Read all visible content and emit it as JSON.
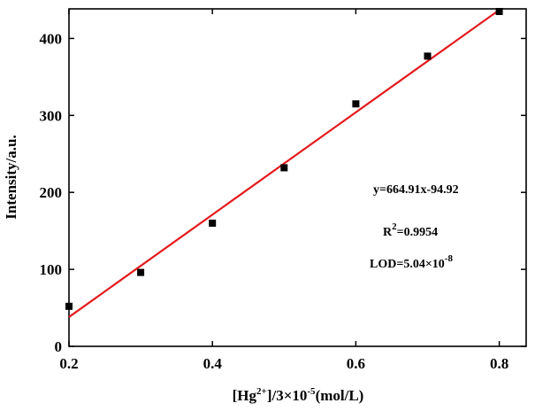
{
  "chart_data": {
    "type": "scatter",
    "xlabel": {
      "prefix": "[Hg",
      "sup": "2+",
      "suffix": "]/3×10",
      "exp": "-5",
      "unit": "(mol/L)"
    },
    "ylabel": "Intensity/a.u.",
    "xlim": [
      0.2,
      0.85
    ],
    "ylim": [
      0,
      470
    ],
    "x_ticks": [
      0.2,
      0.4,
      0.6,
      0.8
    ],
    "x_tick_labels": [
      "0.2",
      "0.4",
      "0.6",
      "0.8"
    ],
    "y_ticks": [
      0,
      100,
      200,
      300,
      400
    ],
    "y_tick_labels": [
      "0",
      "100",
      "200",
      "300",
      "400"
    ],
    "points": {
      "x": [
        0.2,
        0.3,
        0.4,
        0.5,
        0.6,
        0.7,
        0.8
      ],
      "y": [
        52,
        96,
        160,
        232,
        315,
        377,
        435
      ]
    },
    "fit_line": {
      "slope": 664.91,
      "intercept": -94.92,
      "x_range": [
        0.2,
        0.8
      ],
      "color": "#e31a1c"
    },
    "marker_color": "#000000",
    "grid": false,
    "annotations": {
      "equation": "y=664.91x-94.92",
      "r2_base": "R",
      "r2_sup": "2",
      "r2_value": "=0.9954",
      "lod_base": "LOD=5.04×10",
      "lod_sup": "-8"
    }
  }
}
